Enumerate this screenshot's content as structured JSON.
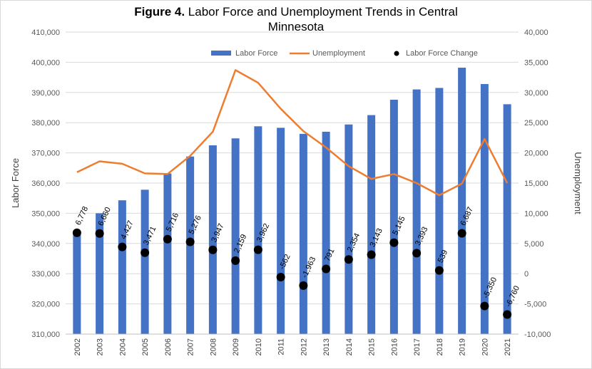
{
  "chart_data": {
    "type": "bar",
    "title_bold": "Figure 4.",
    "title_rest": " Labor Force and Unemployment Trends in Central",
    "title_line2": "Minnesota",
    "ylabel_left": "Labor Force",
    "ylabel_right": "Unemployment",
    "ylim_left": [
      310000,
      410000
    ],
    "ylim_right": [
      -10000,
      40000
    ],
    "yticks_left": [
      "310,000",
      "320,000",
      "330,000",
      "340,000",
      "350,000",
      "360,000",
      "370,000",
      "380,000",
      "390,000",
      "400,000",
      "410,000"
    ],
    "yticks_right": [
      "-10,000",
      "-5,000",
      "0",
      "5,000",
      "10,000",
      "15,000",
      "20,000",
      "25,000",
      "30,000",
      "35,000",
      "40,000"
    ],
    "categories": [
      "2002",
      "2003",
      "2004",
      "2005",
      "2006",
      "2007",
      "2008",
      "2009",
      "2010",
      "2011",
      "2012",
      "2013",
      "2014",
      "2015",
      "2016",
      "2017",
      "2018",
      "2019",
      "2020",
      "2021"
    ],
    "legend_position": "top-right",
    "series": [
      {
        "name": "Labor Force",
        "type": "bar",
        "axis": "left",
        "color": "#4472c4",
        "values": [
          343200,
          350000,
          354300,
          357800,
          363200,
          368800,
          372500,
          374800,
          378800,
          378300,
          376300,
          377000,
          379400,
          382500,
          387600,
          391000,
          391500,
          398200,
          392800,
          386100
        ]
      },
      {
        "name": "Unemployment",
        "type": "line",
        "axis": "right",
        "color": "#ed7d31",
        "values": [
          16800,
          18600,
          18200,
          16600,
          16500,
          19500,
          23500,
          33700,
          31600,
          27300,
          23600,
          20900,
          17800,
          15700,
          16500,
          15000,
          13000,
          14900,
          22300,
          15000
        ]
      },
      {
        "name": "Labor Force Change",
        "type": "scatter",
        "axis": "right",
        "color": "#000000",
        "values": [
          6778,
          6660,
          4427,
          3471,
          5716,
          5276,
          3947,
          2159,
          3962,
          -562,
          -1963,
          791,
          2354,
          3143,
          5145,
          3393,
          539,
          6687,
          -5350,
          -6760
        ],
        "labels": [
          "6,778",
          "6,660",
          "4,427",
          "3,471",
          "5,716",
          "5,276",
          "3,947",
          "2,159",
          "3,962",
          "-562",
          "-1,963",
          "791",
          "2,354",
          "3,143",
          "5,145",
          "3,393",
          "539",
          "6,687",
          "-5,350",
          "-6,760"
        ]
      }
    ]
  }
}
